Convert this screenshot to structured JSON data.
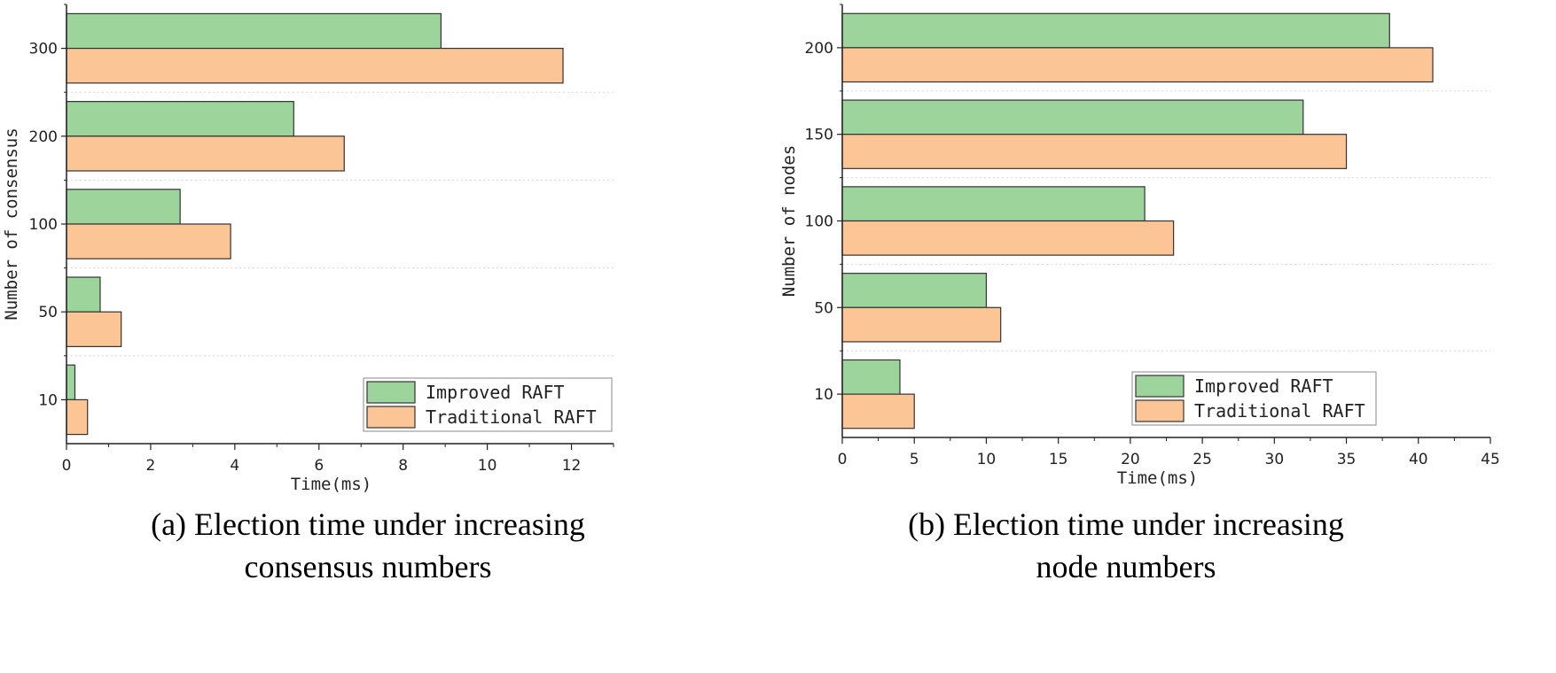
{
  "chart_data": [
    {
      "type": "bar",
      "orientation": "horizontal",
      "categories": [
        "10",
        "50",
        "100",
        "200",
        "300"
      ],
      "series": [
        {
          "name": "Improved RAFT",
          "values": [
            0.2,
            0.8,
            2.7,
            5.4,
            8.9
          ]
        },
        {
          "name": "Traditional RAFT",
          "values": [
            0.5,
            1.3,
            3.9,
            6.6,
            11.8
          ]
        }
      ],
      "xlabel": "Time(ms)",
      "ylabel": "Number of consensus",
      "xlim": [
        0,
        13
      ],
      "xticks": [
        "0",
        "2",
        "4",
        "6",
        "8",
        "10",
        "12"
      ],
      "grid": "horizontal dotted",
      "legend": "bottom-right",
      "caption": [
        "(a) Election time under increasing",
        "consensus numbers"
      ],
      "colors": {
        "Improved RAFT": "#9dd49b",
        "Traditional RAFT": "#fbc595"
      }
    },
    {
      "type": "bar",
      "orientation": "horizontal",
      "categories": [
        "10",
        "50",
        "100",
        "150",
        "200"
      ],
      "series": [
        {
          "name": "Improved RAFT",
          "values": [
            4,
            10,
            21,
            32,
            38
          ]
        },
        {
          "name": "Traditional RAFT",
          "values": [
            5,
            11,
            23,
            35,
            41
          ]
        }
      ],
      "xlabel": "Time(ms)",
      "ylabel": "Number of nodes",
      "xlim": [
        0,
        45
      ],
      "xticks": [
        "0",
        "5",
        "10",
        "15",
        "20",
        "25",
        "30",
        "35",
        "40",
        "45"
      ],
      "grid": "horizontal dotted",
      "legend": "bottom-right",
      "caption": [
        "(b) Election time under increasing",
        "node numbers"
      ],
      "colors": {
        "Improved RAFT": "#9dd49b",
        "Traditional RAFT": "#fbc595"
      }
    }
  ]
}
